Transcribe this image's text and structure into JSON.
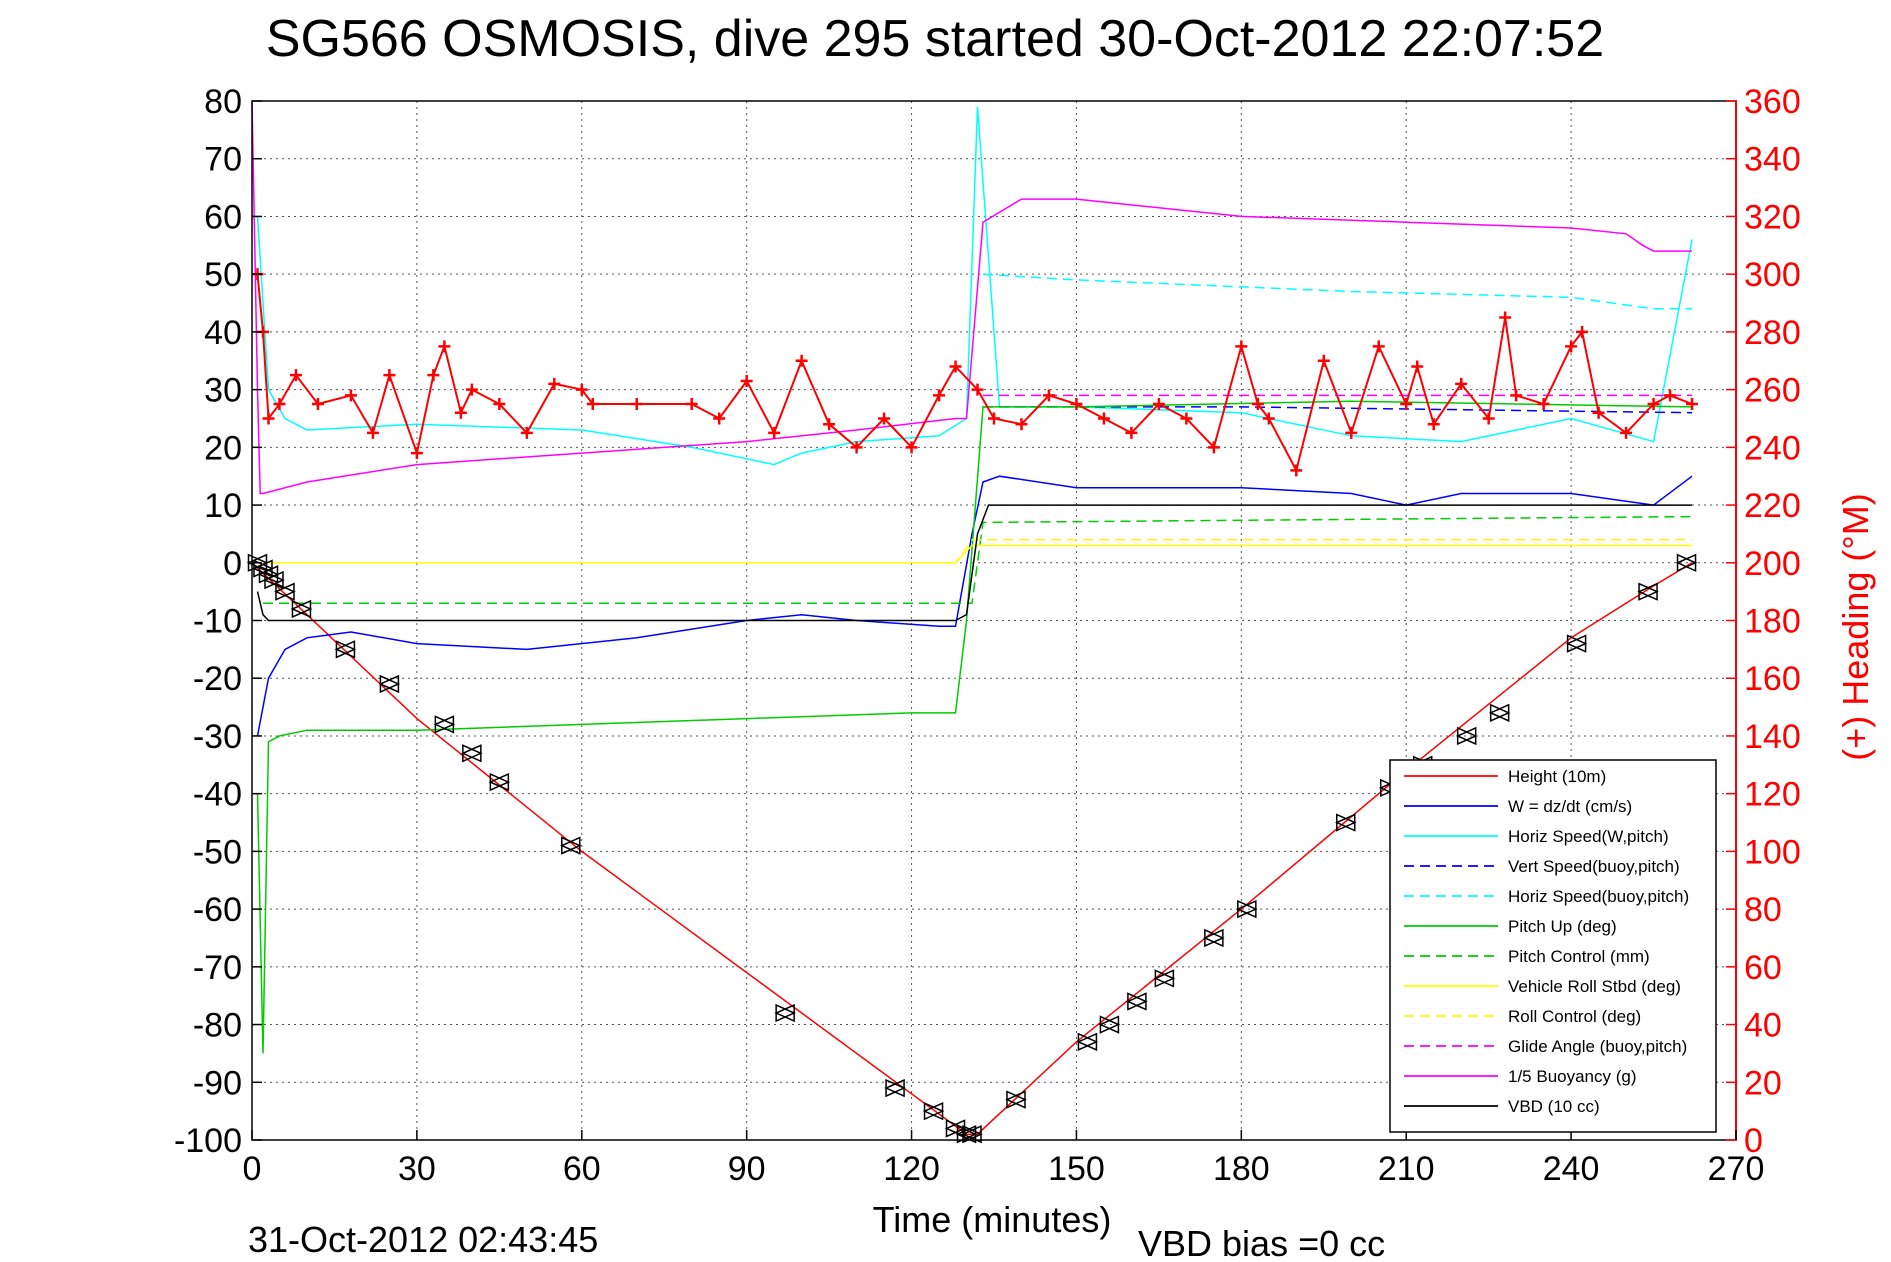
{
  "chart_data": {
    "type": "line",
    "title": "SG566 OSMOSIS, dive 295 started 30-Oct-2012 22:07:52",
    "xlabel": "Time (minutes)",
    "ylabel_right": "(+) Heading (°M)",
    "footer_left": "31-Oct-2012 02:43:45",
    "footer_right": "VBD bias =0 cc",
    "xlim": [
      0,
      270
    ],
    "ylim": [
      -100,
      80
    ],
    "ylim_right": [
      0,
      360
    ],
    "xticks": [
      "0",
      "30",
      "60",
      "90",
      "120",
      "150",
      "180",
      "210",
      "240",
      "270"
    ],
    "yticks": [
      "80",
      "70",
      "60",
      "50",
      "40",
      "30",
      "20",
      "10",
      "0",
      "-10",
      "-20",
      "-30",
      "-40",
      "-50",
      "-60",
      "-70",
      "-80",
      "-90",
      "-100"
    ],
    "yticks_right": [
      "360",
      "340",
      "320",
      "300",
      "280",
      "260",
      "240",
      "220",
      "200",
      "180",
      "160",
      "140",
      "120",
      "100",
      "80",
      "60",
      "40",
      "20",
      "0"
    ],
    "grid": true,
    "legend_position": "bottom-right",
    "colors": {
      "height": "#ff0000",
      "w": "#0000ff",
      "horiz_speed": "#00ffff",
      "vert_speed_buoy": "#0000ff",
      "horiz_speed_buoy": "#00ffff",
      "pitch_up": "#00cc00",
      "pitch_control": "#00cc00",
      "roll": "#ffff00",
      "roll_control": "#ffff00",
      "glide_angle": "#ff00ff",
      "buoyancy": "#ff00ff",
      "vbd": "#000000",
      "heading": "#ff0000"
    },
    "legend": [
      {
        "label": "Height (10m)",
        "color": "#ff0000",
        "dash": false
      },
      {
        "label": "W = dz/dt (cm/s)",
        "color": "#0000ff",
        "dash": false
      },
      {
        "label": "Horiz Speed(W,pitch)",
        "color": "#00ffff",
        "dash": false
      },
      {
        "label": "Vert Speed(buoy,pitch)",
        "color": "#0000ff",
        "dash": true
      },
      {
        "label": "Horiz Speed(buoy,pitch)",
        "color": "#00ffff",
        "dash": true
      },
      {
        "label": "Pitch Up (deg)",
        "color": "#00cc00",
        "dash": false
      },
      {
        "label": "Pitch Control (mm)",
        "color": "#00cc00",
        "dash": true
      },
      {
        "label": "Vehicle Roll Stbd (deg)",
        "color": "#ffff00",
        "dash": false
      },
      {
        "label": "Roll Control (deg)",
        "color": "#ffff00",
        "dash": true
      },
      {
        "label": "Glide Angle (buoy,pitch)",
        "color": "#ff00ff",
        "dash": true
      },
      {
        "label": "1/5 Buoyancy (g)",
        "color": "#ff00ff",
        "dash": false
      },
      {
        "label": "VBD (10 cc)",
        "color": "#000000",
        "dash": false
      }
    ],
    "series": [
      {
        "name": "Height (10m)",
        "x": [
          0,
          10,
          30,
          60,
          90,
          120,
          130,
          132,
          150,
          180,
          210,
          240,
          255,
          262
        ],
        "y": [
          0,
          -9,
          -27,
          -50,
          -71,
          -92,
          -99,
          -99,
          -83,
          -60,
          -36,
          -13,
          -4,
          0
        ]
      },
      {
        "name": "W = dz/dt (cm/s)",
        "x": [
          1,
          3,
          6,
          10,
          18,
          30,
          50,
          70,
          90,
          100,
          110,
          125,
          128,
          131,
          133,
          136,
          150,
          180,
          200,
          210,
          220,
          240,
          255,
          262
        ],
        "y": [
          -30,
          -20,
          -15,
          -13,
          -12,
          -14,
          -15,
          -13,
          -10,
          -9,
          -10,
          -11,
          -11,
          5,
          14,
          15,
          13,
          13,
          12,
          10,
          12,
          12,
          10,
          15
        ]
      },
      {
        "name": "Horiz Speed(W,pitch)",
        "x": [
          1,
          3,
          6,
          10,
          30,
          60,
          80,
          95,
          100,
          110,
          125,
          130,
          132,
          136,
          150,
          180,
          200,
          220,
          240,
          255,
          262
        ],
        "y": [
          60,
          30,
          25,
          23,
          24,
          23,
          20,
          17,
          19,
          21,
          22,
          25,
          79,
          27,
          27,
          26,
          22,
          21,
          25,
          21,
          56
        ]
      },
      {
        "name": "Vert Speed(buoy,pitch)",
        "x": [
          133,
          180,
          262
        ],
        "y": [
          27,
          27,
          26
        ]
      },
      {
        "name": "Horiz Speed(buoy,pitch)",
        "x": [
          133,
          150,
          200,
          240,
          255,
          262
        ],
        "y": [
          50,
          49,
          47,
          46,
          44,
          44
        ]
      },
      {
        "name": "Pitch Up (deg)",
        "x": [
          1,
          2,
          3,
          5,
          10,
          30,
          60,
          90,
          120,
          128,
          130,
          133,
          150,
          200,
          262
        ],
        "y": [
          -40,
          -85,
          -31,
          -30,
          -29,
          -29,
          -28,
          -27,
          -26,
          -26,
          -10,
          27,
          27,
          28,
          27
        ]
      },
      {
        "name": "Pitch Control (mm)",
        "x": [
          2,
          10,
          128,
          131,
          133,
          262
        ],
        "y": [
          -7,
          -7,
          -7,
          -7,
          7,
          8
        ]
      },
      {
        "name": "Vehicle Roll Stbd (deg)",
        "x": [
          2,
          5,
          10,
          60,
          100,
          128,
          131,
          135,
          200,
          262
        ],
        "y": [
          0,
          0,
          0,
          0,
          0,
          0,
          3,
          3,
          3,
          3
        ]
      },
      {
        "name": "Roll Control (deg)",
        "x": [
          2,
          128,
          131,
          262
        ],
        "y": [
          0,
          0,
          4,
          4
        ]
      },
      {
        "name": "Glide Angle (buoy,pitch)",
        "x": [
          133,
          262
        ],
        "y": [
          29,
          29
        ]
      },
      {
        "name": "1/5 Buoyancy (g)",
        "x": [
          0,
          1,
          1.5,
          2,
          10,
          30,
          60,
          90,
          110,
          128,
          130,
          133,
          140,
          150,
          180,
          210,
          240,
          250,
          253,
          255,
          262
        ],
        "y": [
          80,
          30,
          12,
          12,
          14,
          17,
          19,
          21,
          23,
          25,
          25,
          59,
          63,
          63,
          60,
          59,
          58,
          57,
          55,
          54,
          54
        ]
      },
      {
        "name": "VBD (10 cc)",
        "x": [
          1,
          2,
          3,
          10,
          60,
          128,
          130,
          132,
          134,
          262
        ],
        "y": [
          -5,
          -9,
          -10,
          -10,
          -10,
          -10,
          -9,
          5,
          10,
          10
        ]
      },
      {
        "name": "(+) Heading (°M)",
        "x": [
          1,
          2,
          3,
          5,
          8,
          12,
          18,
          22,
          25,
          30,
          33,
          35,
          38,
          40,
          45,
          50,
          55,
          60,
          62,
          70,
          80,
          85,
          90,
          95,
          100,
          105,
          110,
          115,
          120,
          125,
          128,
          132,
          135,
          140,
          145,
          150,
          155,
          160,
          165,
          170,
          175,
          180,
          183,
          185,
          190,
          195,
          200,
          205,
          210,
          212,
          215,
          220,
          225,
          228,
          230,
          235,
          240,
          242,
          245,
          250,
          255,
          258,
          262
        ],
        "y": [
          300,
          280,
          250,
          255,
          265,
          255,
          258,
          245,
          265,
          238,
          265,
          275,
          252,
          260,
          255,
          245,
          262,
          260,
          255,
          255,
          255,
          250,
          263,
          245,
          270,
          248,
          240,
          250,
          240,
          258,
          268,
          260,
          250,
          248,
          258,
          255,
          250,
          245,
          255,
          250,
          240,
          275,
          255,
          250,
          232,
          270,
          245,
          275,
          255,
          268,
          248,
          262,
          250,
          285,
          258,
          255,
          275,
          280,
          252,
          245,
          255,
          258,
          255
        ]
      }
    ],
    "markers": {
      "symbol": "triangle",
      "x": [
        1,
        2,
        3,
        4,
        6,
        9,
        17,
        25,
        35,
        40,
        45,
        58,
        97,
        117,
        124,
        128,
        130,
        131,
        139,
        152,
        156,
        161,
        166,
        175,
        181,
        199,
        207,
        213,
        221,
        227,
        241,
        254,
        261
      ],
      "y": [
        0,
        -1,
        -2,
        -3,
        -5,
        -8,
        -15,
        -21,
        -28,
        -33,
        -38,
        -49,
        -78,
        -91,
        -95,
        -98,
        -99,
        -99,
        -93,
        -83,
        -80,
        -76,
        -72,
        -65,
        -60,
        -45,
        -39,
        -35,
        -30,
        -26,
        -14,
        -5,
        0
      ]
    }
  }
}
